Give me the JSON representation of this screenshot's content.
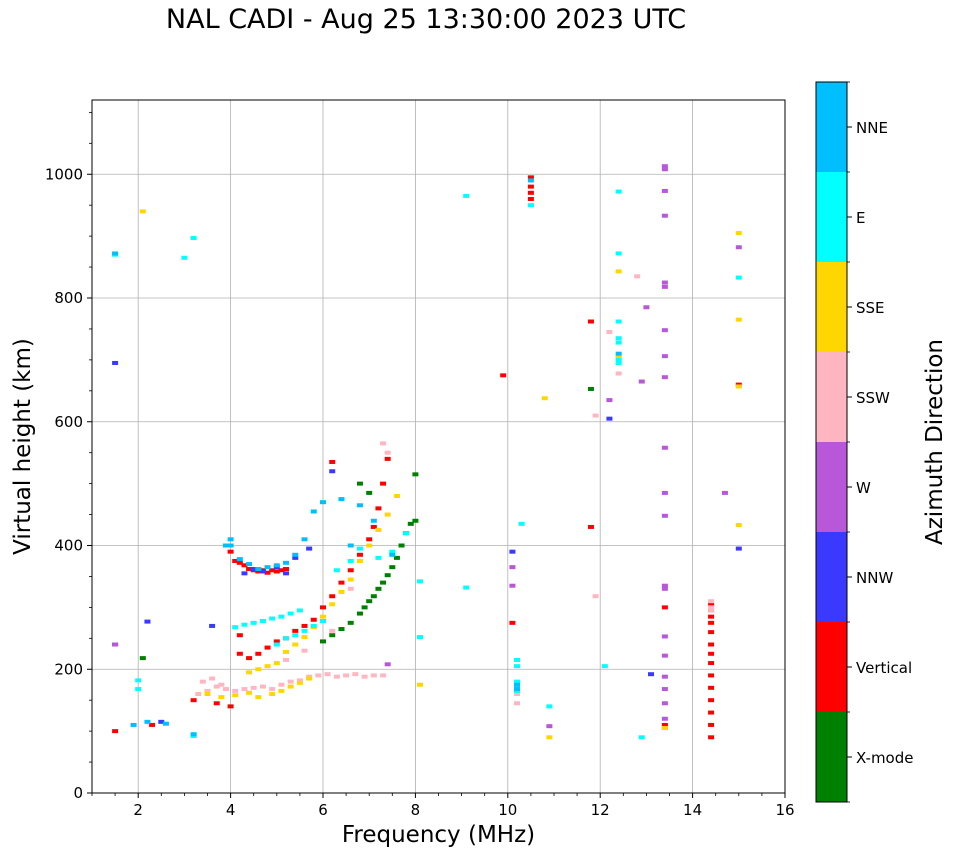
{
  "chart_data": {
    "type": "scatter",
    "title": "NAL CADI - Aug 25 13:30:00 2023 UTC",
    "xlabel": "Frequency (MHz)",
    "ylabel": "Virtual height (km)",
    "xlim": [
      1,
      16
    ],
    "ylim": [
      0,
      1120
    ],
    "xticks": [
      2,
      4,
      6,
      8,
      10,
      12,
      14,
      16
    ],
    "yticks": [
      0,
      200,
      400,
      600,
      800,
      1000
    ],
    "grid": true,
    "colorbar": {
      "label": "Azimuth Direction",
      "categories": [
        {
          "name": "X-mode",
          "color": "#008000"
        },
        {
          "name": "Vertical",
          "color": "#ff0000"
        },
        {
          "name": "NNW",
          "color": "#3a3aff"
        },
        {
          "name": "W",
          "color": "#b857d8"
        },
        {
          "name": "SSW",
          "color": "#ffb6c1"
        },
        {
          "name": "SSE",
          "color": "#ffd700"
        },
        {
          "name": "E",
          "color": "#00ffff"
        },
        {
          "name": "NNE",
          "color": "#00bfff"
        }
      ]
    },
    "series": [
      {
        "name": "Vertical",
        "points": [
          [
            4.0,
            390
          ],
          [
            4.1,
            375
          ],
          [
            4.2,
            372
          ],
          [
            4.3,
            368
          ],
          [
            4.4,
            362
          ],
          [
            4.5,
            360
          ],
          [
            4.6,
            358
          ],
          [
            4.7,
            360
          ],
          [
            4.8,
            356
          ],
          [
            4.9,
            360
          ],
          [
            5.0,
            358
          ],
          [
            5.1,
            360
          ],
          [
            5.2,
            362
          ],
          [
            4.2,
            225
          ],
          [
            4.4,
            218
          ],
          [
            4.6,
            225
          ],
          [
            4.8,
            235
          ],
          [
            5.0,
            245
          ],
          [
            5.2,
            250
          ],
          [
            5.4,
            262
          ],
          [
            5.6,
            270
          ],
          [
            5.8,
            280
          ],
          [
            6.0,
            300
          ],
          [
            6.2,
            318
          ],
          [
            6.4,
            340
          ],
          [
            6.6,
            360
          ],
          [
            6.8,
            385
          ],
          [
            7.0,
            410
          ],
          [
            7.1,
            430
          ],
          [
            7.2,
            460
          ],
          [
            7.3,
            500
          ],
          [
            7.4,
            540
          ],
          [
            6.2,
            535
          ],
          [
            3.2,
            150
          ],
          [
            3.7,
            145
          ],
          [
            4.2,
            255
          ],
          [
            4.0,
            140
          ],
          [
            9.9,
            675
          ],
          [
            10.1,
            275
          ],
          [
            10.5,
            995
          ],
          [
            10.5,
            980
          ],
          [
            10.5,
            970
          ],
          [
            10.5,
            960
          ],
          [
            11.8,
            762
          ],
          [
            11.8,
            430
          ],
          [
            13.4,
            110
          ],
          [
            13.4,
            300
          ],
          [
            14.4,
            90
          ],
          [
            14.4,
            110
          ],
          [
            14.4,
            130
          ],
          [
            14.4,
            150
          ],
          [
            14.4,
            170
          ],
          [
            14.4,
            190
          ],
          [
            14.4,
            210
          ],
          [
            14.4,
            225
          ],
          [
            14.4,
            240
          ],
          [
            14.4,
            260
          ],
          [
            14.4,
            275
          ],
          [
            14.4,
            285
          ],
          [
            14.4,
            295
          ],
          [
            14.4,
            305
          ],
          [
            15.0,
            660
          ],
          [
            1.5,
            100
          ],
          [
            2.3,
            110
          ]
        ]
      },
      {
        "name": "X-mode",
        "points": [
          [
            6.0,
            245
          ],
          [
            6.2,
            255
          ],
          [
            6.4,
            265
          ],
          [
            6.6,
            275
          ],
          [
            6.8,
            290
          ],
          [
            6.9,
            300
          ],
          [
            7.0,
            310
          ],
          [
            7.1,
            318
          ],
          [
            7.2,
            330
          ],
          [
            7.3,
            340
          ],
          [
            7.4,
            352
          ],
          [
            7.5,
            365
          ],
          [
            7.6,
            380
          ],
          [
            7.7,
            400
          ],
          [
            7.8,
            420
          ],
          [
            7.9,
            435
          ],
          [
            8.0,
            440
          ],
          [
            6.8,
            500
          ],
          [
            7.0,
            485
          ],
          [
            8.0,
            515
          ],
          [
            11.8,
            653
          ],
          [
            2.1,
            218
          ]
        ]
      },
      {
        "name": "NNW",
        "points": [
          [
            4.3,
            355
          ],
          [
            4.5,
            362
          ],
          [
            4.7,
            358
          ],
          [
            5.0,
            365
          ],
          [
            5.2,
            355
          ],
          [
            5.4,
            380
          ],
          [
            5.7,
            395
          ],
          [
            6.2,
            520
          ],
          [
            3.6,
            270
          ],
          [
            1.5,
            695
          ],
          [
            1.5,
            240
          ],
          [
            2.2,
            277
          ],
          [
            10.1,
            390
          ],
          [
            12.2,
            605
          ],
          [
            13.1,
            192
          ],
          [
            15.0,
            395
          ],
          [
            2.5,
            115
          ]
        ]
      },
      {
        "name": "W",
        "points": [
          [
            1.5,
            240
          ],
          [
            10.1,
            335
          ],
          [
            10.1,
            365
          ],
          [
            10.9,
            108
          ],
          [
            12.2,
            635
          ],
          [
            12.9,
            665
          ],
          [
            13.0,
            785
          ],
          [
            13.4,
            1013
          ],
          [
            13.4,
            1008
          ],
          [
            13.4,
            973
          ],
          [
            13.4,
            933
          ],
          [
            13.4,
            825
          ],
          [
            13.4,
            818
          ],
          [
            13.4,
            748
          ],
          [
            13.4,
            706
          ],
          [
            13.4,
            672
          ],
          [
            13.4,
            558
          ],
          [
            13.4,
            485
          ],
          [
            13.4,
            448
          ],
          [
            13.4,
            335
          ],
          [
            13.4,
            330
          ],
          [
            13.4,
            253
          ],
          [
            13.4,
            222
          ],
          [
            13.4,
            188
          ],
          [
            13.4,
            168
          ],
          [
            13.4,
            145
          ],
          [
            13.4,
            120
          ],
          [
            13.4,
            105
          ],
          [
            14.7,
            485
          ],
          [
            15.0,
            882
          ],
          [
            7.4,
            208
          ]
        ]
      },
      {
        "name": "SSW",
        "points": [
          [
            3.3,
            160
          ],
          [
            3.5,
            165
          ],
          [
            3.7,
            172
          ],
          [
            3.9,
            168
          ],
          [
            4.1,
            165
          ],
          [
            4.3,
            168
          ],
          [
            4.5,
            170
          ],
          [
            4.7,
            172
          ],
          [
            4.9,
            168
          ],
          [
            5.1,
            175
          ],
          [
            5.3,
            180
          ],
          [
            5.5,
            182
          ],
          [
            5.7,
            188
          ],
          [
            5.9,
            190
          ],
          [
            6.1,
            192
          ],
          [
            6.3,
            188
          ],
          [
            6.5,
            190
          ],
          [
            6.7,
            192
          ],
          [
            6.9,
            188
          ],
          [
            7.1,
            190
          ],
          [
            7.3,
            190
          ],
          [
            3.4,
            180
          ],
          [
            3.6,
            185
          ],
          [
            3.8,
            175
          ],
          [
            5.2,
            215
          ],
          [
            5.6,
            230
          ],
          [
            6.2,
            262
          ],
          [
            6.6,
            330
          ],
          [
            7.3,
            565
          ],
          [
            7.4,
            550
          ],
          [
            10.2,
            160
          ],
          [
            10.2,
            145
          ],
          [
            11.9,
            610
          ],
          [
            11.9,
            318
          ],
          [
            12.2,
            745
          ],
          [
            12.4,
            678
          ],
          [
            12.8,
            835
          ],
          [
            14.4,
            300
          ],
          [
            14.4,
            310
          ],
          [
            14.4,
            295
          ]
        ]
      },
      {
        "name": "SSE",
        "points": [
          [
            3.5,
            160
          ],
          [
            3.8,
            155
          ],
          [
            4.1,
            158
          ],
          [
            4.4,
            162
          ],
          [
            4.6,
            155
          ],
          [
            4.9,
            160
          ],
          [
            5.1,
            165
          ],
          [
            5.3,
            172
          ],
          [
            5.5,
            178
          ],
          [
            5.7,
            185
          ],
          [
            4.4,
            195
          ],
          [
            4.6,
            200
          ],
          [
            4.8,
            205
          ],
          [
            5.0,
            210
          ],
          [
            5.2,
            228
          ],
          [
            5.4,
            240
          ],
          [
            5.6,
            252
          ],
          [
            5.8,
            268
          ],
          [
            6.0,
            285
          ],
          [
            6.2,
            305
          ],
          [
            6.4,
            325
          ],
          [
            6.6,
            345
          ],
          [
            6.8,
            375
          ],
          [
            7.0,
            400
          ],
          [
            7.2,
            425
          ],
          [
            7.4,
            450
          ],
          [
            7.6,
            480
          ],
          [
            2.1,
            940
          ],
          [
            8.1,
            175
          ],
          [
            10.8,
            638
          ],
          [
            10.9,
            90
          ],
          [
            12.4,
            843
          ],
          [
            12.4,
            705
          ],
          [
            12.4,
            703
          ],
          [
            13.4,
            105
          ],
          [
            15.0,
            905
          ],
          [
            15.0,
            765
          ],
          [
            15.0,
            657
          ],
          [
            15.0,
            433
          ]
        ]
      },
      {
        "name": "E",
        "points": [
          [
            4.1,
            268
          ],
          [
            4.3,
            272
          ],
          [
            4.5,
            275
          ],
          [
            4.7,
            278
          ],
          [
            4.9,
            282
          ],
          [
            5.1,
            285
          ],
          [
            5.3,
            290
          ],
          [
            5.5,
            295
          ],
          [
            5.0,
            240
          ],
          [
            5.2,
            250
          ],
          [
            5.4,
            255
          ],
          [
            5.6,
            262
          ],
          [
            5.8,
            270
          ],
          [
            6.0,
            278
          ],
          [
            6.3,
            360
          ],
          [
            6.6,
            375
          ],
          [
            6.8,
            395
          ],
          [
            7.2,
            380
          ],
          [
            7.5,
            390
          ],
          [
            7.8,
            420
          ],
          [
            1.5,
            870
          ],
          [
            3.0,
            865
          ],
          [
            3.2,
            897
          ],
          [
            2.0,
            168
          ],
          [
            2.0,
            182
          ],
          [
            3.2,
            92
          ],
          [
            9.1,
            965
          ],
          [
            9.1,
            332
          ],
          [
            8.1,
            342
          ],
          [
            8.1,
            252
          ],
          [
            10.3,
            435
          ],
          [
            10.2,
            215
          ],
          [
            10.2,
            205
          ],
          [
            10.2,
            180
          ],
          [
            10.2,
            172
          ],
          [
            10.2,
            165
          ],
          [
            10.5,
            950
          ],
          [
            10.9,
            140
          ],
          [
            12.1,
            205
          ],
          [
            12.4,
            972
          ],
          [
            12.4,
            872
          ],
          [
            12.4,
            762
          ],
          [
            12.4,
            735
          ],
          [
            12.4,
            728
          ],
          [
            12.4,
            700
          ],
          [
            12.4,
            695
          ],
          [
            12.9,
            90
          ],
          [
            15.0,
            833
          ]
        ]
      },
      {
        "name": "NNE",
        "points": [
          [
            4.0,
            410
          ],
          [
            4.0,
            400
          ],
          [
            4.2,
            378
          ],
          [
            4.4,
            370
          ],
          [
            4.6,
            362
          ],
          [
            4.8,
            365
          ],
          [
            5.0,
            368
          ],
          [
            5.2,
            372
          ],
          [
            5.4,
            385
          ],
          [
            5.6,
            410
          ],
          [
            5.8,
            455
          ],
          [
            6.0,
            470
          ],
          [
            6.4,
            475
          ],
          [
            6.6,
            400
          ],
          [
            6.8,
            465
          ],
          [
            7.1,
            440
          ],
          [
            7.5,
            385
          ],
          [
            1.5,
            872
          ],
          [
            1.9,
            110
          ],
          [
            2.2,
            115
          ],
          [
            2.6,
            112
          ],
          [
            3.2,
            95
          ],
          [
            3.9,
            400
          ],
          [
            10.2,
            175
          ],
          [
            10.2,
            168
          ],
          [
            10.5,
            990
          ],
          [
            12.4,
            710
          ]
        ]
      }
    ]
  }
}
